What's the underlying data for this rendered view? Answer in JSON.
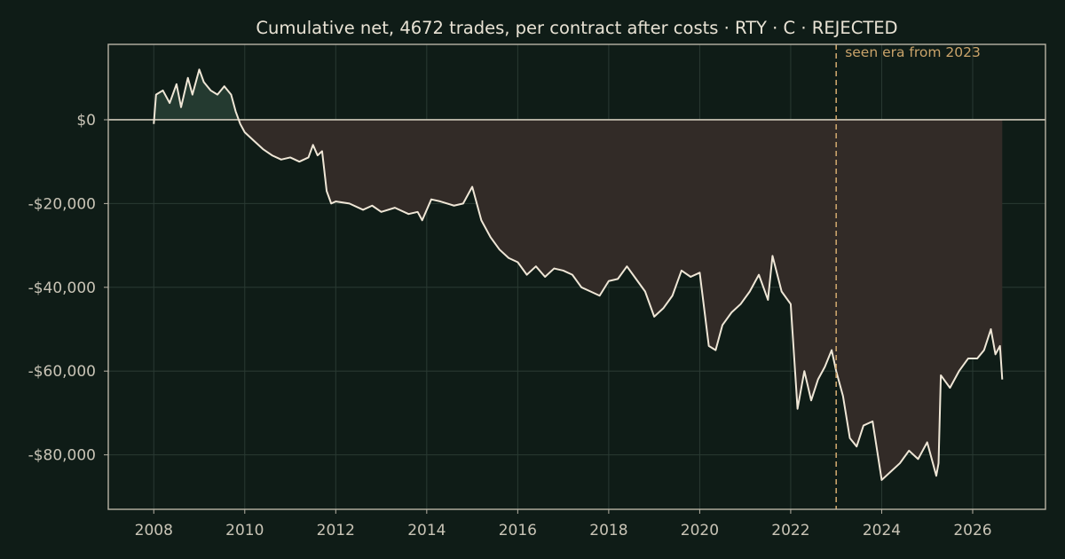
{
  "chart_data": {
    "type": "area",
    "title": "Cumulative net, 4672 trades, per contract after costs  ·  RTY · C · REJECTED",
    "xlabel": "",
    "ylabel": "",
    "xlim": [
      2007.0,
      2027.6
    ],
    "ylim": [
      -93000,
      18000
    ],
    "x_ticks": [
      2008,
      2010,
      2012,
      2014,
      2016,
      2018,
      2020,
      2022,
      2024,
      2026
    ],
    "y_ticks": [
      {
        "value": 0,
        "label": "$0"
      },
      {
        "value": -20000,
        "label": "-$20,000"
      },
      {
        "value": -40000,
        "label": "-$40,000"
      },
      {
        "value": -60000,
        "label": "-$60,000"
      },
      {
        "value": -80000,
        "label": "-$80,000"
      }
    ],
    "grid": true,
    "legend": "none",
    "zero_line": 0,
    "annotation": {
      "x": 2023.0,
      "text": "seen era from 2023",
      "style": "dashed vertical line"
    },
    "colors": {
      "background": "#0f1c17",
      "line": "#efe6d6",
      "positive_fill": "#243a30",
      "negative_fill": "#322b27",
      "axis": "#b8b3a6",
      "grid": "#2a3a33",
      "annotation": "#c9a36a"
    },
    "series": [
      {
        "x": [
          2008.0,
          2008.05,
          2008.2,
          2008.35,
          2008.5,
          2008.6,
          2008.75,
          2008.85,
          2009.0,
          2009.1,
          2009.25,
          2009.4,
          2009.55,
          2009.7,
          2009.8,
          2009.9,
          2010.0,
          2010.2,
          2010.4,
          2010.6,
          2010.8,
          2011.0,
          2011.2,
          2011.4,
          2011.5,
          2011.6,
          2011.7,
          2011.8,
          2011.9,
          2012.0,
          2012.3,
          2012.6,
          2012.8,
          2013.0,
          2013.3,
          2013.6,
          2013.8,
          2013.9,
          2014.1,
          2014.3,
          2014.6,
          2014.8,
          2015.0,
          2015.2,
          2015.4,
          2015.6,
          2015.8,
          2016.0,
          2016.2,
          2016.4,
          2016.6,
          2016.8,
          2017.0,
          2017.2,
          2017.4,
          2017.6,
          2017.8,
          2018.0,
          2018.2,
          2018.4,
          2018.6,
          2018.8,
          2019.0,
          2019.2,
          2019.4,
          2019.6,
          2019.8,
          2020.0,
          2020.2,
          2020.35,
          2020.5,
          2020.7,
          2020.9,
          2021.1,
          2021.3,
          2021.5,
          2021.6,
          2021.8,
          2022.0,
          2022.15,
          2022.3,
          2022.45,
          2022.6,
          2022.75,
          2022.9,
          2023.0,
          2023.15,
          2023.3,
          2023.45,
          2023.6,
          2023.8,
          2024.0,
          2024.2,
          2024.4,
          2024.6,
          2024.8,
          2025.0,
          2025.2,
          2025.25,
          2025.3,
          2025.5,
          2025.7,
          2025.9,
          2026.1,
          2026.25,
          2026.4,
          2026.5,
          2026.6,
          2026.65
        ],
        "y": [
          -1000,
          6000,
          7000,
          4000,
          8500,
          3000,
          10000,
          6000,
          12000,
          9000,
          7000,
          6000,
          8000,
          6000,
          2000,
          -1000,
          -3000,
          -5000,
          -7000,
          -8500,
          -9500,
          -9000,
          -10000,
          -9000,
          -6000,
          -8500,
          -7500,
          -17000,
          -20000,
          -19500,
          -20000,
          -21500,
          -20500,
          -22000,
          -21000,
          -22500,
          -22000,
          -24000,
          -19000,
          -19500,
          -20500,
          -20000,
          -16000,
          -24000,
          -28000,
          -31000,
          -33000,
          -34000,
          -37000,
          -35000,
          -37500,
          -35500,
          -36000,
          -37000,
          -40000,
          -41000,
          -42000,
          -38500,
          -38000,
          -35000,
          -38000,
          -41000,
          -47000,
          -45000,
          -42000,
          -36000,
          -37500,
          -36500,
          -54000,
          -55000,
          -49000,
          -46000,
          -44000,
          -41000,
          -37000,
          -43000,
          -32500,
          -41000,
          -44000,
          -69000,
          -60000,
          -67000,
          -62000,
          -59000,
          -55000,
          -60000,
          -66000,
          -76000,
          -78000,
          -73000,
          -72000,
          -86000,
          -84000,
          -82000,
          -79000,
          -81000,
          -77000,
          -85000,
          -82000,
          -61000,
          -64000,
          -60000,
          -57000,
          -57000,
          -55000,
          -50000,
          -56000,
          -54000,
          -62000
        ]
      }
    ]
  }
}
